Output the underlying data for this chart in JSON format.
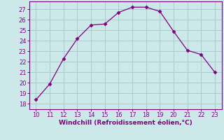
{
  "x": [
    10,
    11,
    12,
    13,
    14,
    15,
    16,
    17,
    18,
    19,
    20,
    21,
    22,
    23
  ],
  "y": [
    18.4,
    19.9,
    22.3,
    24.2,
    25.5,
    25.6,
    26.7,
    27.2,
    27.2,
    26.8,
    24.9,
    23.1,
    22.7,
    21.0
  ],
  "line_color": "#800080",
  "marker": "D",
  "marker_size": 2.5,
  "bg_color": "#cce8e8",
  "grid_color": "#aacccc",
  "xlabel": "Windchill (Refroidissement éolien,°C)",
  "xlabel_color": "#800080",
  "tick_color": "#800080",
  "spine_color": "#800080",
  "xlim": [
    9.5,
    23.5
  ],
  "ylim": [
    17.5,
    27.75
  ],
  "yticks": [
    18,
    19,
    20,
    21,
    22,
    23,
    24,
    25,
    26,
    27
  ],
  "xticks": [
    10,
    11,
    12,
    13,
    14,
    15,
    16,
    17,
    18,
    19,
    20,
    21,
    22,
    23
  ],
  "tick_fontsize": 6.0,
  "xlabel_fontsize": 6.5
}
